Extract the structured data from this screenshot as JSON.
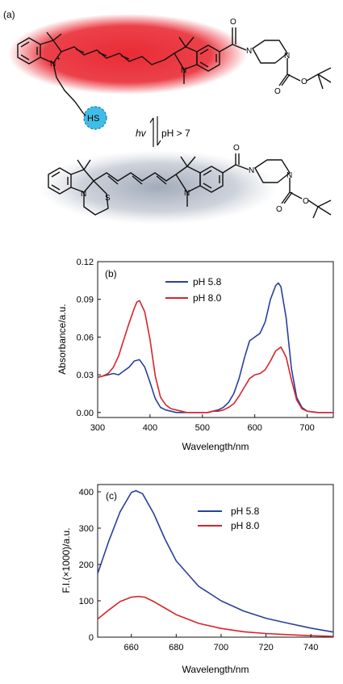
{
  "panel_a": {
    "label": "(a)",
    "arrow_label_left": "hv",
    "arrow_label_right": "pH > 7",
    "atoms": {
      "n_plus": "N",
      "plus": "+",
      "n_right": "N",
      "n_pip1": "N",
      "n_pip2": "N",
      "o1": "O",
      "o2": "O",
      "o3": "O",
      "o4": "O",
      "o5": "O",
      "o6": "O",
      "hs": "HS",
      "n_bottom_left": "N",
      "s_bottom": "S",
      "n_bottom_right": "N",
      "n_pip3": "N",
      "n_pip4": "N"
    },
    "colors": {
      "red_glow": "#e8202a",
      "gray_glow": "#8b95a8",
      "thiol": "#40bde6"
    }
  },
  "chart_data": [
    {
      "type": "line",
      "panel_label": "(b)",
      "xlabel": "Wavelength/nm",
      "ylabel": "Absorbance/a.u.",
      "xlim": [
        300,
        750
      ],
      "ylim": [
        -0.004,
        0.12
      ],
      "xticks": [
        "300",
        "400",
        "500",
        "600",
        "700"
      ],
      "yticks": [
        "0.00",
        "0.03",
        "0.06",
        "0.09",
        "0.12"
      ],
      "legend_position": "top-center",
      "series": [
        {
          "name": "pH 5.8",
          "color": "#2b3f9c",
          "x": [
            300,
            310,
            320,
            330,
            340,
            350,
            360,
            370,
            380,
            390,
            400,
            410,
            420,
            430,
            440,
            450,
            460,
            470,
            480,
            490,
            500,
            510,
            520,
            530,
            540,
            550,
            560,
            570,
            580,
            590,
            600,
            610,
            620,
            630,
            640,
            645,
            650,
            660,
            670,
            680,
            690,
            700,
            720,
            750
          ],
          "y": [
            0.028,
            0.029,
            0.03,
            0.031,
            0.03,
            0.033,
            0.036,
            0.041,
            0.042,
            0.036,
            0.024,
            0.011,
            0.004,
            0.002,
            0.001,
            0.0,
            0.0,
            0.0,
            0.0,
            0.0,
            0.0,
            0.0,
            0.001,
            0.002,
            0.004,
            0.008,
            0.015,
            0.027,
            0.043,
            0.057,
            0.06,
            0.063,
            0.072,
            0.09,
            0.101,
            0.103,
            0.1,
            0.075,
            0.035,
            0.012,
            0.004,
            0.001,
            0.0,
            0.0
          ]
        },
        {
          "name": "pH 8.0",
          "color": "#d9232b",
          "x": [
            300,
            310,
            320,
            330,
            340,
            350,
            360,
            370,
            375,
            380,
            390,
            400,
            410,
            420,
            430,
            440,
            450,
            460,
            470,
            480,
            490,
            500,
            510,
            520,
            530,
            540,
            550,
            560,
            570,
            580,
            590,
            600,
            610,
            620,
            630,
            640,
            650,
            660,
            670,
            680,
            690,
            700,
            720,
            750
          ],
          "y": [
            0.028,
            0.029,
            0.031,
            0.036,
            0.045,
            0.058,
            0.071,
            0.083,
            0.088,
            0.089,
            0.08,
            0.058,
            0.029,
            0.012,
            0.006,
            0.003,
            0.002,
            0.001,
            0.0,
            0.0,
            0.0,
            0.0,
            0.0,
            0.001,
            0.001,
            0.002,
            0.004,
            0.007,
            0.013,
            0.02,
            0.027,
            0.03,
            0.031,
            0.034,
            0.041,
            0.049,
            0.052,
            0.044,
            0.026,
            0.01,
            0.003,
            0.001,
            0.0,
            0.0
          ]
        }
      ]
    },
    {
      "type": "line",
      "panel_label": "(c)",
      "xlabel": "Wavelength/nm",
      "ylabel": "F.I.(×1000)/a.u.",
      "xlim": [
        645,
        750
      ],
      "ylim": [
        0,
        420
      ],
      "xticks": [
        "660",
        "680",
        "700",
        "720",
        "740"
      ],
      "yticks": [
        "0",
        "100",
        "200",
        "300",
        "400"
      ],
      "legend_position": "top-right",
      "series": [
        {
          "name": "pH 5.8",
          "color": "#2b3f9c",
          "x": [
            645,
            650,
            655,
            660,
            662,
            665,
            670,
            675,
            680,
            690,
            700,
            710,
            720,
            730,
            740,
            750
          ],
          "y": [
            175,
            265,
            345,
            398,
            403,
            395,
            340,
            270,
            210,
            140,
            100,
            72,
            52,
            38,
            25,
            14
          ]
        },
        {
          "name": "pH 8.0",
          "color": "#d9232b",
          "x": [
            645,
            650,
            655,
            660,
            663,
            666,
            670,
            675,
            680,
            690,
            700,
            710,
            720,
            730,
            740,
            750
          ],
          "y": [
            50,
            75,
            98,
            110,
            112,
            110,
            98,
            80,
            62,
            38,
            24,
            15,
            10,
            7,
            4,
            2
          ]
        }
      ]
    }
  ]
}
